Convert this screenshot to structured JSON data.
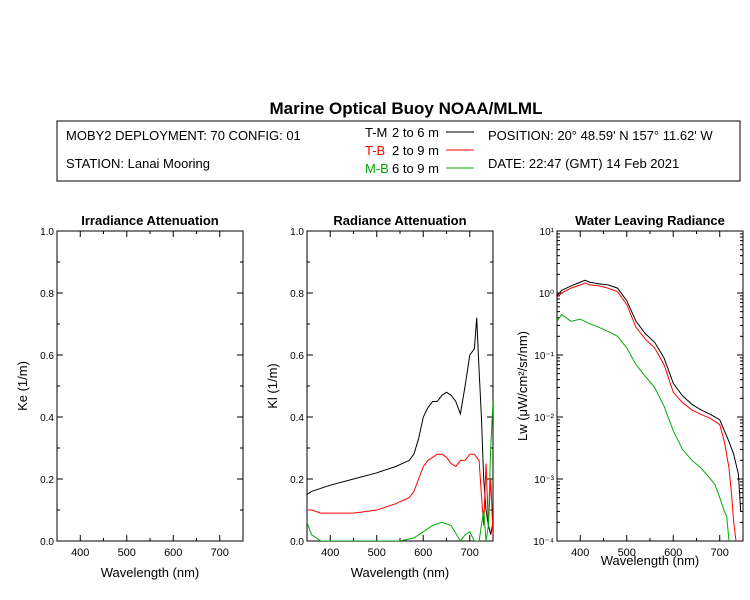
{
  "page": {
    "title": "Marine Optical Buoy NOAA/MLML",
    "info": {
      "deployment": "MOBY2 DEPLOYMENT: 70 CONFIG: 01",
      "station": "STATION: Lanai Mooring",
      "position": "POSITION: 20° 48.59' N   157° 11.62' W",
      "date": "DATE: 22:47 (GMT) 14 Feb 2021"
    },
    "legend": [
      {
        "code": "T-M",
        "range": "2 to 6  m",
        "color": "#000000"
      },
      {
        "code": "T-B",
        "range": "2 to 9  m",
        "color": "#ff0000"
      },
      {
        "code": "M-B",
        "range": "6 to 9  m",
        "color": "#00aa00"
      }
    ]
  },
  "chart_data": [
    {
      "type": "line",
      "title": "Irradiance Attenuation",
      "xlabel": "Wavelength (nm)",
      "ylabel": "Ke  (1/m)",
      "xlim": [
        350,
        750
      ],
      "ylim": [
        0,
        1
      ],
      "xticks": [
        400,
        500,
        600,
        700
      ],
      "yticks": [
        0.0,
        0.2,
        0.4,
        0.6,
        0.8,
        1.0
      ],
      "ytick_labels": [
        "0.0",
        "0.2",
        "0.4",
        "0.6",
        "0.8",
        "1.0"
      ],
      "series": []
    },
    {
      "type": "line",
      "title": "Radiance Attenuation",
      "xlabel": "Wavelength (nm)",
      "ylabel": "Kl  (1/m)",
      "xlim": [
        350,
        750
      ],
      "ylim": [
        0,
        1
      ],
      "xticks": [
        400,
        500,
        600,
        700
      ],
      "yticks": [
        0.0,
        0.2,
        0.4,
        0.6,
        0.8,
        1.0
      ],
      "ytick_labels": [
        "0.0",
        "0.2",
        "0.4",
        "0.6",
        "0.8",
        "1.0"
      ],
      "series": [
        {
          "name": "T-M",
          "color": "#000000",
          "x": [
            350,
            360,
            380,
            400,
            450,
            500,
            540,
            570,
            580,
            590,
            600,
            610,
            620,
            630,
            640,
            650,
            660,
            670,
            680,
            690,
            700,
            710,
            715,
            720,
            725,
            730,
            735,
            740,
            745,
            750
          ],
          "y": [
            0.15,
            0.16,
            0.17,
            0.18,
            0.2,
            0.22,
            0.24,
            0.26,
            0.28,
            0.33,
            0.4,
            0.43,
            0.45,
            0.45,
            0.47,
            0.48,
            0.47,
            0.45,
            0.41,
            0.5,
            0.6,
            0.62,
            0.72,
            0.55,
            0.4,
            0.2,
            0.1,
            0.05,
            0.02,
            0.06
          ]
        },
        {
          "name": "T-B",
          "color": "#ff0000",
          "x": [
            350,
            360,
            380,
            400,
            450,
            500,
            540,
            570,
            580,
            590,
            600,
            610,
            620,
            630,
            640,
            650,
            660,
            670,
            680,
            690,
            700,
            710,
            720,
            725,
            730,
            735,
            740,
            745,
            750
          ],
          "y": [
            0.1,
            0.1,
            0.09,
            0.09,
            0.09,
            0.1,
            0.12,
            0.14,
            0.16,
            0.2,
            0.24,
            0.26,
            0.27,
            0.28,
            0.28,
            0.27,
            0.25,
            0.24,
            0.26,
            0.26,
            0.28,
            0.28,
            0.26,
            0.15,
            0.05,
            0.25,
            0.05,
            0.2,
            0.02
          ]
        },
        {
          "name": "M-B",
          "color": "#00aa00",
          "x": [
            350,
            360,
            380,
            400,
            450,
            500,
            550,
            580,
            600,
            620,
            640,
            660,
            680,
            690,
            700,
            710,
            720,
            725,
            730,
            735,
            740,
            745,
            750
          ],
          "y": [
            0.06,
            0.02,
            0.0,
            0.0,
            0.0,
            0.0,
            0.0,
            0.01,
            0.03,
            0.05,
            0.06,
            0.05,
            0.0,
            0.02,
            0.03,
            0.0,
            0.0,
            0.05,
            0.1,
            0.0,
            0.05,
            0.3,
            0.45
          ]
        }
      ]
    },
    {
      "type": "line",
      "title": "Water Leaving Radiance",
      "xlabel": "Wavelength (nm)",
      "ylabel": "Lw  (μW/cm²/sr/nm)",
      "yscale": "log",
      "xlim": [
        350,
        750
      ],
      "ylim": [
        0.0001,
        10
      ],
      "xticks": [
        400,
        500,
        600,
        700
      ],
      "ytick_labels": [
        "10⁻⁴",
        "10⁻³",
        "10⁻²",
        "10⁻¹",
        "10⁰",
        "10¹"
      ],
      "series": [
        {
          "name": "T-M",
          "color": "#000000",
          "x": [
            350,
            360,
            380,
            400,
            410,
            420,
            440,
            460,
            480,
            500,
            520,
            540,
            560,
            580,
            600,
            620,
            640,
            660,
            680,
            700,
            710,
            720,
            730,
            740,
            745
          ],
          "y": [
            0.9,
            1.1,
            1.3,
            1.5,
            1.6,
            1.5,
            1.4,
            1.35,
            1.2,
            0.75,
            0.35,
            0.22,
            0.16,
            0.09,
            0.035,
            0.022,
            0.016,
            0.013,
            0.011,
            0.009,
            0.006,
            0.004,
            0.0025,
            0.0012,
            0.0003
          ]
        },
        {
          "name": "T-B",
          "color": "#ff0000",
          "x": [
            350,
            360,
            380,
            400,
            410,
            420,
            440,
            460,
            480,
            500,
            520,
            540,
            560,
            580,
            600,
            620,
            640,
            660,
            680,
            700,
            710,
            720,
            725,
            730,
            735
          ],
          "y": [
            0.85,
            1.0,
            1.2,
            1.35,
            1.45,
            1.35,
            1.3,
            1.2,
            1.05,
            0.65,
            0.28,
            0.18,
            0.13,
            0.07,
            0.025,
            0.017,
            0.013,
            0.011,
            0.0095,
            0.0075,
            0.004,
            0.0015,
            0.0006,
            0.0002,
            0.0001
          ]
        },
        {
          "name": "M-B",
          "color": "#00aa00",
          "x": [
            350,
            360,
            380,
            400,
            420,
            440,
            460,
            480,
            500,
            520,
            540,
            560,
            580,
            600,
            620,
            640,
            660,
            680,
            690,
            700,
            710,
            715,
            720
          ],
          "y": [
            0.35,
            0.45,
            0.35,
            0.38,
            0.32,
            0.28,
            0.24,
            0.2,
            0.13,
            0.07,
            0.045,
            0.03,
            0.015,
            0.006,
            0.003,
            0.002,
            0.0015,
            0.001,
            0.0008,
            0.0005,
            0.0003,
            0.00025,
            0.0001
          ]
        }
      ]
    }
  ]
}
